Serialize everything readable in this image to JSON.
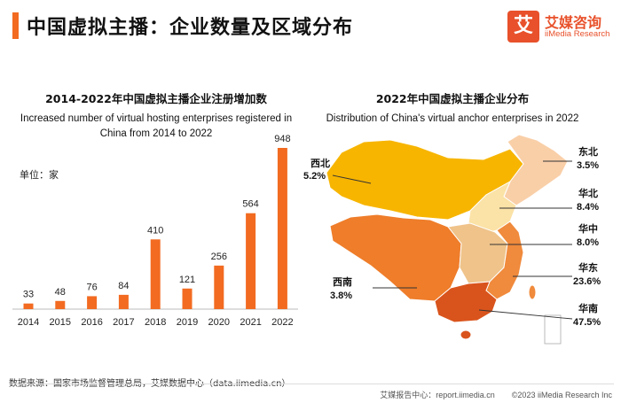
{
  "page": {
    "title": "中国虚拟主播：企业数量及区域分布",
    "logo_icon": "艾",
    "logo_cn": "艾媒咨询",
    "logo_en": "iiMedia Research",
    "source": "数据来源：国家市场监督管理总局，艾媒数据中心（data.iimedia.cn）",
    "footer_report": "艾媒报告中心：report.iimedia.cn",
    "footer_copyright": "©2023  iiMedia Research  Inc"
  },
  "colors": {
    "accent": "#f26b21",
    "bar": "#f26b21",
    "northwest": "#f7b500",
    "northeast": "#f9cfa8",
    "north": "#fbe2a6",
    "central": "#efc38a",
    "east": "#f08a3c",
    "southwest": "#ef7d2a",
    "south": "#d9541c"
  },
  "chart_data": [
    {
      "type": "bar",
      "title": "2014-2022年中国虚拟主播企业注册增加数",
      "subtitle": "Increased number of virtual hosting enterprises registered in China from 2014 to 2022",
      "unit": "单位：家",
      "categories": [
        "2014",
        "2015",
        "2016",
        "2017",
        "2018",
        "2019",
        "2020",
        "2021",
        "2022"
      ],
      "values": [
        33,
        48,
        76,
        84,
        410,
        121,
        256,
        564,
        948
      ],
      "ylim": [
        0,
        948
      ],
      "grid": false
    },
    {
      "type": "map",
      "title": "2022年中国虚拟主播企业分布",
      "subtitle": "Distribution of China's virtual anchor enterprises in 2022",
      "regions": [
        {
          "name": "西北",
          "value": "5.2%"
        },
        {
          "name": "东北",
          "value": "3.5%"
        },
        {
          "name": "华北",
          "value": "8.4%"
        },
        {
          "name": "华中",
          "value": "8.0%"
        },
        {
          "name": "华东",
          "value": "23.6%"
        },
        {
          "name": "西南",
          "value": "3.8%"
        },
        {
          "name": "华南",
          "value": "47.5%"
        }
      ]
    }
  ]
}
